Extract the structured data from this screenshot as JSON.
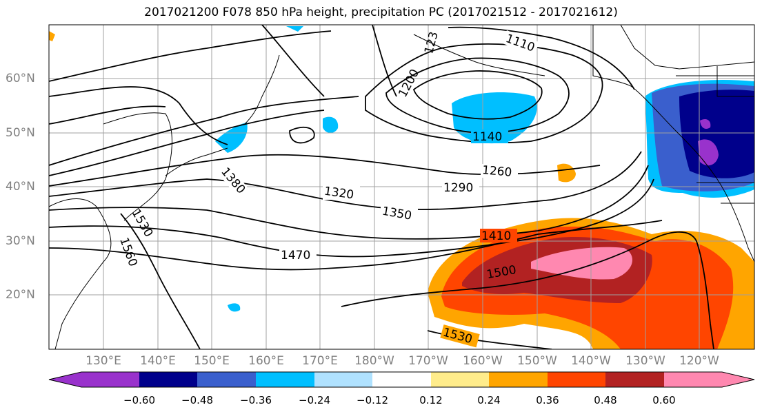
{
  "title": "2017021200 F078 850 hPa height, precipitation PC (2017021512 - 2017021612)",
  "lat_labels": [
    "60°N",
    "50°N",
    "40°N",
    "30°N",
    "20°N"
  ],
  "lon_labels": [
    "130°E",
    "140°E",
    "150°E",
    "160°E",
    "170°E",
    "180°W",
    "170°W",
    "160°W",
    "150°W",
    "140°W",
    "130°W",
    "120°W"
  ],
  "contour_labels": [
    "1110",
    "1140",
    "1200",
    "123",
    "1260",
    "1290",
    "1320",
    "1350",
    "1380",
    "1410",
    "1470",
    "1500",
    "1530",
    "1560",
    "1530"
  ],
  "colorbar": {
    "ticks": [
      "−0.60",
      "−0.48",
      "−0.36",
      "−0.24",
      "−0.12",
      "0.12",
      "0.24",
      "0.36",
      "0.48",
      "0.60"
    ],
    "colors": [
      "#9932cc",
      "#00008b",
      "#3a5fcd",
      "#00bfff",
      "#b0e2ff",
      "#ffffff",
      "#ffec8b",
      "#ffa500",
      "#ff4500",
      "#b22222",
      "#ff88b0"
    ]
  },
  "colors": {
    "contour": "#000000",
    "grid": "#a0a0a0",
    "axis_label": "#808080"
  }
}
